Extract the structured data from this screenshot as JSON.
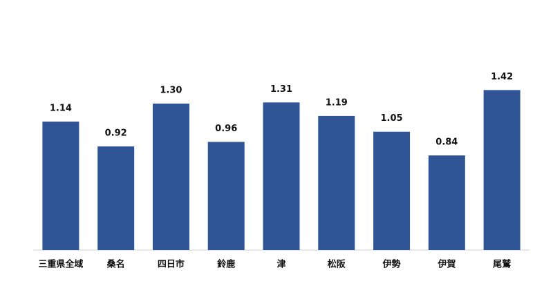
{
  "chart_data": {
    "type": "bar",
    "categories": [
      "三重県全域",
      "桑名",
      "四日市",
      "鈴鹿",
      "津",
      "松阪",
      "伊勢",
      "伊賀",
      "尾鷲"
    ],
    "values": [
      1.14,
      0.92,
      1.3,
      0.96,
      1.31,
      1.19,
      1.05,
      0.84,
      1.42
    ],
    "value_labels": [
      "1.14",
      "0.92",
      "1.30",
      "0.96",
      "1.31",
      "1.19",
      "1.05",
      "0.84",
      "1.42"
    ],
    "color": "#2f5597",
    "ylim": [
      0,
      1.6
    ]
  }
}
